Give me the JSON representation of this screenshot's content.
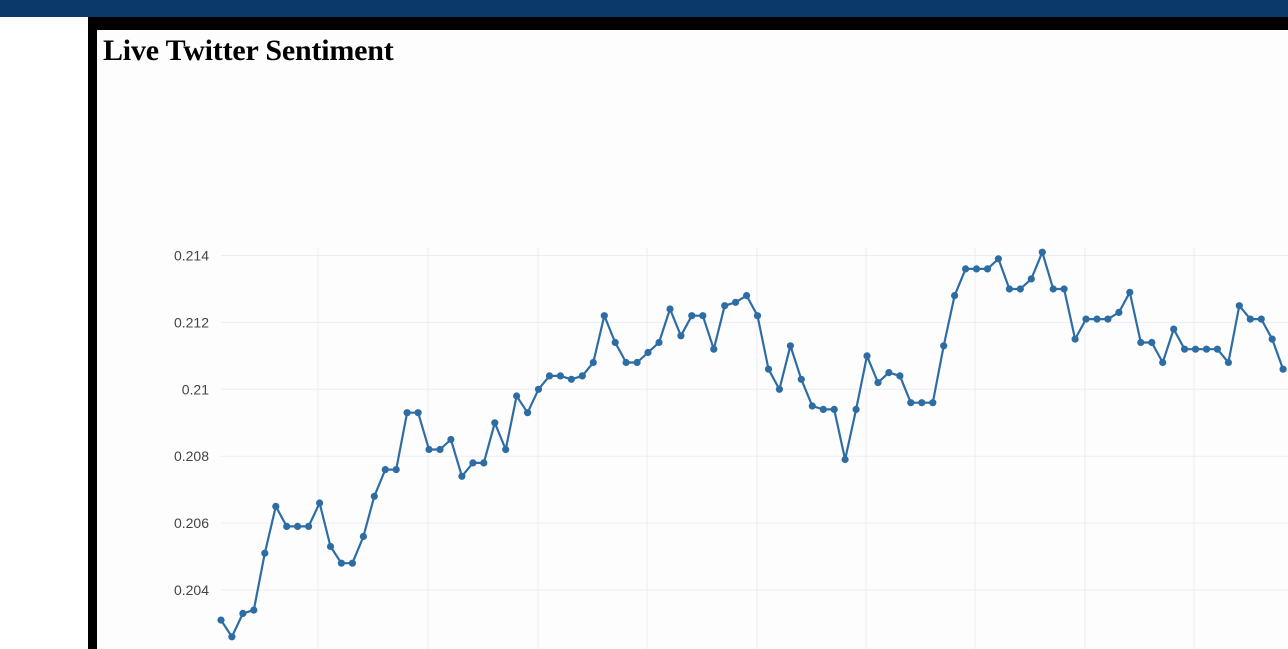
{
  "page": {
    "title": "Live Twitter Sentiment",
    "banner_color": "#0b3a6a"
  },
  "chart_data": {
    "type": "line",
    "title": "",
    "xlabel": "",
    "ylabel": "",
    "ylim": [
      0.2026,
      0.2143
    ],
    "grid": true,
    "y_ticks": [
      {
        "value": 0.214,
        "label": "0.214"
      },
      {
        "value": 0.212,
        "label": "0.212"
      },
      {
        "value": 0.21,
        "label": "0.21"
      },
      {
        "value": 0.208,
        "label": "0.208"
      },
      {
        "value": 0.206,
        "label": "0.206"
      },
      {
        "value": 0.204,
        "label": "0.204"
      }
    ],
    "series": [
      {
        "color": "#2e6da4",
        "marker": "circle",
        "values": [
          0.2031,
          0.2026,
          0.2033,
          0.2034,
          0.2051,
          0.2065,
          0.2059,
          0.2059,
          0.2059,
          0.2066,
          0.2053,
          0.2048,
          0.2048,
          0.2056,
          0.2068,
          0.2076,
          0.2076,
          0.2093,
          0.2093,
          0.2082,
          0.2082,
          0.2085,
          0.2074,
          0.2078,
          0.2078,
          0.209,
          0.2082,
          0.2098,
          0.2093,
          0.21,
          0.2104,
          0.2104,
          0.2103,
          0.2104,
          0.2108,
          0.2122,
          0.2114,
          0.2108,
          0.2108,
          0.2111,
          0.2114,
          0.2124,
          0.2116,
          0.2122,
          0.2122,
          0.2112,
          0.2125,
          0.2126,
          0.2128,
          0.2122,
          0.2106,
          0.21,
          0.2113,
          0.2103,
          0.2095,
          0.2094,
          0.2094,
          0.2079,
          0.2094,
          0.211,
          0.2102,
          0.2105,
          0.2104,
          0.2096,
          0.2096,
          0.2096,
          0.2113,
          0.2128,
          0.2136,
          0.2136,
          0.2136,
          0.2139,
          0.213,
          0.213,
          0.2133,
          0.2141,
          0.213,
          0.213,
          0.2115,
          0.2121,
          0.2121,
          0.2121,
          0.2123,
          0.2129,
          0.2114,
          0.2114,
          0.2108,
          0.2118,
          0.2112,
          0.2112,
          0.2112,
          0.2112,
          0.2108,
          0.2125,
          0.2121,
          0.2121,
          0.2115,
          0.2106
        ]
      }
    ]
  }
}
